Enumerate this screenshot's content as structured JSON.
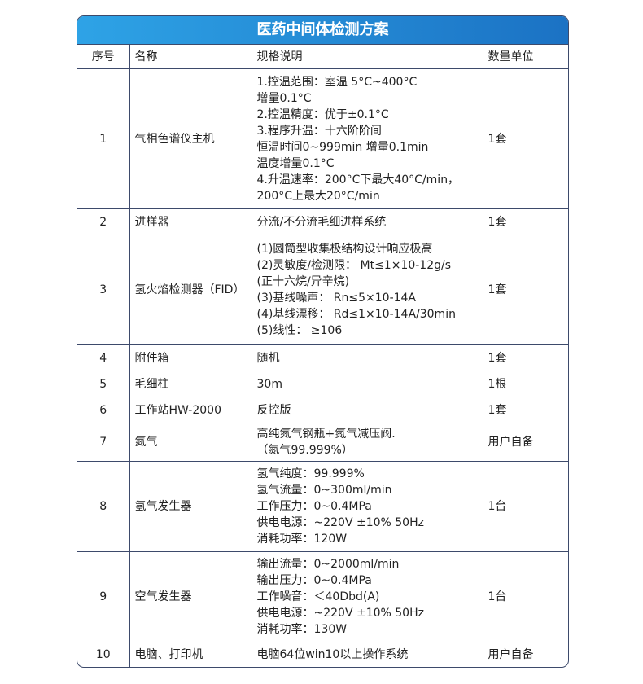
{
  "title": "医药中间体检测方案",
  "headers": [
    "序号",
    "名称",
    "规格说明",
    "数量单位"
  ],
  "rows": [
    {
      "no": "1",
      "name": "气相色谱仪主机",
      "spec": [
        "1.控温范围：室温 5°C~400°C",
        "增量0.1°C",
        "2.控温精度：优于±0.1°C",
        "3.程序升温：十六阶阶间",
        "恒温时间0~999min 增量0.1min",
        "温度增量0.1°C",
        "4.升温速率：200°C下最大40°C/min，",
        "200°C上最大20°C/min"
      ],
      "qty": "1套"
    },
    {
      "no": "2",
      "name": "进样器",
      "spec": [
        "分流/不分流毛细进样系统"
      ],
      "qty": "1套"
    },
    {
      "no": "3",
      "name": "氢火焰检测器（FID）",
      "spec": [
        "(1)圆筒型收集极结构设计响应极高",
        "(2)灵敏度/检测限： Mt≤1×10-12g/s",
        "(正十六烷/异辛烷)",
        "(3)基线噪声： Rn≤5×10-14A",
        "(4)基线漂移： Rd≤1×10-14A/30min",
        "(5)线性： ≥106"
      ],
      "qty": "1套"
    },
    {
      "no": "4",
      "name": "附件箱",
      "spec": [
        "随机"
      ],
      "qty": "1套"
    },
    {
      "no": "5",
      "name": "毛细柱",
      "spec": [
        "30m"
      ],
      "qty": "1根"
    },
    {
      "no": "6",
      "name": "工作站HW-2000",
      "spec": [
        "反控版"
      ],
      "qty": "1套"
    },
    {
      "no": "7",
      "name": "氮气",
      "spec": [
        "高纯氮气钢瓶+氮气减压阀.",
        "（氮气99.999%）"
      ],
      "qty": "用户自备"
    },
    {
      "no": "8",
      "name": "氢气发生器",
      "spec": [
        "氢气纯度：99.999%",
        "氢气流量：0~300ml/min",
        "工作压力：0~0.4MPa",
        "供电电源：~220V ±10% 50Hz",
        "消耗功率：120W"
      ],
      "qty": "1台"
    },
    {
      "no": "9",
      "name": "空气发生器",
      "spec": [
        "输出流量：0~2000ml/min",
        "输出压力：0~0.4MPa",
        "工作噪音：＜40Dbd(A)",
        "供电电源：~220V ±10% 50Hz",
        "消耗功率：130W"
      ],
      "qty": "1台"
    },
    {
      "no": "10",
      "name": "电脑、打印机",
      "spec": [
        "电脑64位win10以上操作系统"
      ],
      "qty": "用户自备"
    }
  ]
}
